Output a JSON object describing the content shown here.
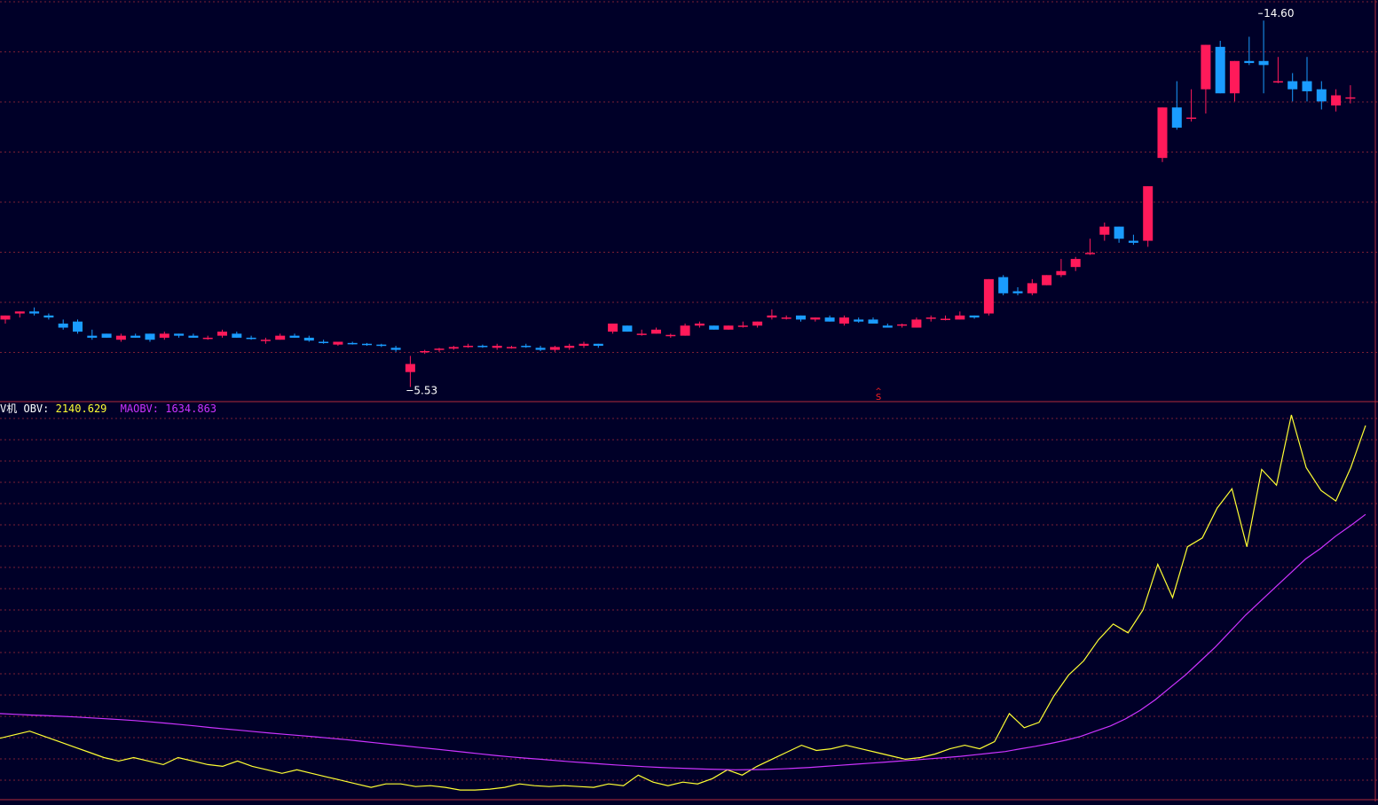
{
  "indicator": {
    "prefix": "V机",
    "obv_label": "OBV:",
    "obv_value": "2140.629",
    "maobv_label": "MAOBV:",
    "maobv_value": "1634.863"
  },
  "annotations": {
    "high_label": "14.60",
    "low_label": "5.53",
    "signal_label": "S"
  },
  "colors": {
    "background": "#000028",
    "up": "#ff1a5a",
    "down": "#1a9cff",
    "obv": "#ffff33",
    "maobv": "#cc33ff",
    "grid": "#7a1f33",
    "signal": "#ff2020"
  },
  "chart_data": [
    {
      "type": "candlestick",
      "ylim": [
        5.3,
        15.0
      ],
      "candles": [
        [
          7.2,
          7.3,
          7.1,
          7.3
        ],
        [
          7.35,
          7.4,
          7.25,
          7.4
        ],
        [
          7.4,
          7.5,
          7.3,
          7.35
        ],
        [
          7.3,
          7.35,
          7.2,
          7.25
        ],
        [
          7.1,
          7.2,
          6.95,
          7.0
        ],
        [
          7.15,
          7.2,
          6.85,
          6.9
        ],
        [
          6.8,
          6.95,
          6.7,
          6.75
        ],
        [
          6.85,
          6.85,
          6.75,
          6.75
        ],
        [
          6.7,
          6.85,
          6.65,
          6.8
        ],
        [
          6.8,
          6.85,
          6.75,
          6.75
        ],
        [
          6.85,
          6.85,
          6.65,
          6.7
        ],
        [
          6.75,
          6.9,
          6.7,
          6.85
        ],
        [
          6.85,
          6.85,
          6.75,
          6.8
        ],
        [
          6.8,
          6.85,
          6.75,
          6.75
        ],
        [
          6.72,
          6.8,
          6.7,
          6.75
        ],
        [
          6.8,
          6.95,
          6.75,
          6.9
        ],
        [
          6.85,
          6.9,
          6.75,
          6.75
        ],
        [
          6.75,
          6.8,
          6.7,
          6.72
        ],
        [
          6.7,
          6.75,
          6.6,
          6.7
        ],
        [
          6.7,
          6.85,
          6.7,
          6.8
        ],
        [
          6.8,
          6.85,
          6.75,
          6.75
        ],
        [
          6.75,
          6.8,
          6.65,
          6.68
        ],
        [
          6.65,
          6.7,
          6.6,
          6.62
        ],
        [
          6.58,
          6.65,
          6.55,
          6.65
        ],
        [
          6.62,
          6.65,
          6.58,
          6.6
        ],
        [
          6.6,
          6.62,
          6.55,
          6.58
        ],
        [
          6.58,
          6.6,
          6.52,
          6.55
        ],
        [
          6.5,
          6.55,
          6.4,
          6.45
        ],
        [
          5.9,
          6.3,
          5.53,
          6.1
        ],
        [
          6.4,
          6.45,
          6.35,
          6.42
        ],
        [
          6.45,
          6.5,
          6.4,
          6.48
        ],
        [
          6.48,
          6.55,
          6.45,
          6.52
        ],
        [
          6.55,
          6.6,
          6.5,
          6.55
        ],
        [
          6.55,
          6.58,
          6.5,
          6.52
        ],
        [
          6.5,
          6.6,
          6.45,
          6.55
        ],
        [
          6.52,
          6.55,
          6.48,
          6.52
        ],
        [
          6.55,
          6.6,
          6.5,
          6.52
        ],
        [
          6.5,
          6.55,
          6.42,
          6.45
        ],
        [
          6.45,
          6.55,
          6.4,
          6.52
        ],
        [
          6.5,
          6.6,
          6.45,
          6.55
        ],
        [
          6.55,
          6.65,
          6.5,
          6.6
        ],
        [
          6.6,
          6.6,
          6.5,
          6.55
        ],
        [
          6.9,
          7.1,
          6.85,
          7.1
        ],
        [
          7.05,
          7.05,
          6.9,
          6.9
        ],
        [
          6.85,
          6.95,
          6.8,
          6.85
        ],
        [
          6.85,
          7.0,
          6.85,
          6.95
        ],
        [
          6.8,
          6.85,
          6.75,
          6.82
        ],
        [
          6.8,
          7.1,
          6.8,
          7.05
        ],
        [
          7.05,
          7.15,
          7.0,
          7.1
        ],
        [
          7.05,
          7.05,
          6.95,
          6.95
        ],
        [
          6.95,
          7.05,
          6.95,
          7.05
        ],
        [
          7.05,
          7.15,
          7.0,
          7.05
        ],
        [
          7.05,
          7.15,
          7.0,
          7.15
        ],
        [
          7.25,
          7.45,
          7.2,
          7.3
        ],
        [
          7.25,
          7.3,
          7.2,
          7.25
        ],
        [
          7.3,
          7.3,
          7.15,
          7.2
        ],
        [
          7.2,
          7.25,
          7.15,
          7.25
        ],
        [
          7.25,
          7.3,
          7.15,
          7.15
        ],
        [
          7.1,
          7.3,
          7.05,
          7.25
        ],
        [
          7.2,
          7.25,
          7.12,
          7.15
        ],
        [
          7.2,
          7.25,
          7.1,
          7.1
        ],
        [
          7.05,
          7.1,
          7.0,
          7.0
        ],
        [
          7.05,
          7.1,
          7.0,
          7.08
        ],
        [
          7.0,
          7.25,
          7.0,
          7.2
        ],
        [
          7.25,
          7.3,
          7.15,
          7.25
        ],
        [
          7.2,
          7.3,
          7.18,
          7.22
        ],
        [
          7.2,
          7.4,
          7.2,
          7.3
        ],
        [
          7.3,
          7.3,
          7.22,
          7.25
        ],
        [
          7.35,
          8.2,
          7.3,
          8.2
        ],
        [
          8.25,
          8.3,
          7.8,
          7.85
        ],
        [
          7.9,
          8.0,
          7.8,
          7.85
        ],
        [
          7.85,
          8.2,
          7.8,
          8.1
        ],
        [
          8.05,
          8.3,
          8.05,
          8.3
        ],
        [
          8.3,
          8.7,
          8.25,
          8.4
        ],
        [
          8.5,
          8.75,
          8.4,
          8.7
        ],
        [
          8.85,
          9.2,
          8.8,
          8.85
        ],
        [
          9.3,
          9.6,
          9.15,
          9.5
        ],
        [
          9.5,
          9.5,
          9.1,
          9.2
        ],
        [
          9.15,
          9.3,
          9.05,
          9.1
        ],
        [
          9.15,
          10.5,
          9.0,
          10.5
        ],
        [
          11.2,
          12.45,
          11.1,
          12.45
        ],
        [
          12.45,
          13.1,
          11.9,
          11.95
        ],
        [
          12.2,
          12.9,
          12.1,
          12.2
        ],
        [
          12.9,
          14.0,
          12.3,
          14.0
        ],
        [
          13.95,
          14.1,
          12.8,
          12.8
        ],
        [
          12.8,
          13.6,
          12.6,
          13.6
        ],
        [
          13.6,
          14.2,
          13.5,
          13.55
        ],
        [
          13.6,
          14.6,
          12.8,
          13.5
        ],
        [
          13.1,
          13.7,
          13.05,
          13.1
        ],
        [
          13.1,
          13.3,
          12.6,
          12.9
        ],
        [
          13.1,
          13.7,
          12.6,
          12.85
        ],
        [
          12.9,
          13.1,
          12.4,
          12.6
        ],
        [
          12.5,
          12.9,
          12.35,
          12.75
        ],
        [
          12.7,
          13.0,
          12.55,
          12.7
        ]
      ]
    },
    {
      "type": "line",
      "ylim": [
        0,
        2180
      ],
      "series": [
        {
          "name": "OBV",
          "values": [
            360,
            380,
            400,
            370,
            340,
            310,
            280,
            250,
            230,
            250,
            230,
            210,
            250,
            230,
            210,
            200,
            230,
            200,
            180,
            160,
            180,
            160,
            140,
            120,
            100,
            80,
            100,
            100,
            85,
            90,
            80,
            65,
            65,
            70,
            80,
            100,
            90,
            85,
            90,
            85,
            80,
            100,
            90,
            150,
            110,
            90,
            110,
            100,
            130,
            180,
            150,
            200,
            240,
            280,
            320,
            290,
            300,
            320,
            300,
            280,
            260,
            240,
            250,
            270,
            300,
            320,
            300,
            340,
            500,
            420,
            450,
            600,
            720,
            800,
            920,
            1010,
            960,
            1090,
            1350,
            1160,
            1450,
            1500,
            1670,
            1780,
            1450,
            1890,
            1800,
            2200,
            1900,
            1770,
            1710,
            1900,
            2140
          ]
        },
        {
          "name": "MAOBV",
          "values": [
            500,
            496,
            492,
            489,
            485,
            481,
            476,
            471,
            466,
            460,
            453,
            446,
            438,
            430,
            421,
            413,
            405,
            397,
            389,
            382,
            375,
            368,
            360,
            352,
            343,
            334,
            325,
            316,
            307,
            298,
            289,
            280,
            271,
            262,
            254,
            247,
            240,
            233,
            226,
            220,
            214,
            208,
            203,
            198,
            194,
            190,
            187,
            184,
            182,
            180,
            181,
            182,
            185,
            189,
            194,
            200,
            206,
            212,
            218,
            224,
            230,
            236,
            243,
            250,
            257,
            266,
            275,
            284,
            300,
            314,
            330,
            348,
            370,
            400,
            430,
            470,
            520,
            580,
            650,
            720,
            800,
            880,
            970,
            1060,
            1140,
            1220,
            1300,
            1380,
            1440,
            1510,
            1570,
            1634
          ]
        }
      ]
    }
  ]
}
